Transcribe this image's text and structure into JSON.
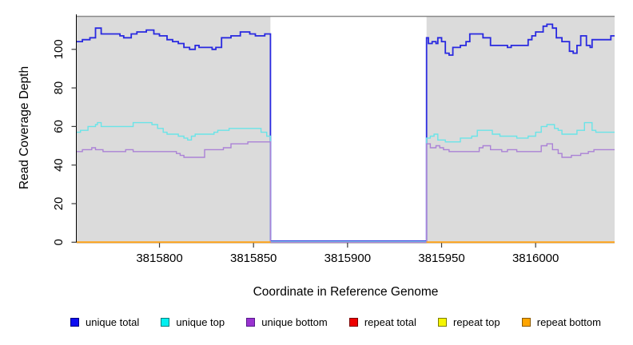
{
  "figure": {
    "x_axis_title": "Coordinate in Reference Genome",
    "y_axis_title": "Read Coverage Depth"
  },
  "colors": {
    "panel_shade": "#dbdbdb",
    "panel_top_border": "#8a8a8a",
    "axis": "#000000",
    "tick": "#3a3a3a",
    "unique_total_line": "#2929e0",
    "unique_top_line": "#6ae4e8",
    "unique_bottom_line": "#ab82d6",
    "repeat_total_line": "#ee0000",
    "repeat_top_line": "#f5f500",
    "repeat_bottom_line": "#ffa319"
  },
  "chart_data": {
    "type": "line",
    "step": true,
    "title": "",
    "xlabel": "Coordinate in Reference Genome",
    "ylabel": "Read Coverage Depth",
    "xlim": [
      3815756,
      3816042
    ],
    "ylim": [
      0,
      118
    ],
    "x_ticks": [
      3815800,
      3815850,
      3815900,
      3815950,
      3816000
    ],
    "y_ticks": [
      0,
      20,
      40,
      60,
      80,
      100
    ],
    "grid": false,
    "legend_position": "bottom",
    "shaded_regions": [
      {
        "x0": 3815756,
        "x1": 3815859
      },
      {
        "x0": 3815942,
        "x1": 3816042
      }
    ],
    "uncovered_gap": {
      "x0": 3815859,
      "x1": 3815942
    },
    "series": [
      {
        "name": "unique total",
        "color": "#2929e0",
        "width": 1.8,
        "segments": [
          [
            [
              3815756,
              104
            ],
            [
              3815759,
              105
            ],
            [
              3815763,
              106
            ],
            [
              3815766,
              111
            ],
            [
              3815769,
              108
            ],
            [
              3815779,
              107
            ],
            [
              3815781,
              106
            ],
            [
              3815785,
              108
            ],
            [
              3815788,
              109
            ],
            [
              3815793,
              110
            ],
            [
              3815797,
              108
            ],
            [
              3815800,
              107
            ],
            [
              3815804,
              105
            ],
            [
              3815807,
              104
            ],
            [
              3815810,
              103
            ],
            [
              3815813,
              101
            ],
            [
              3815816,
              100
            ],
            [
              3815819,
              102
            ],
            [
              3815821,
              101
            ],
            [
              3815828,
              100
            ],
            [
              3815830,
              101
            ],
            [
              3815833,
              106
            ],
            [
              3815838,
              107
            ],
            [
              3815843,
              109
            ],
            [
              3815848,
              108
            ],
            [
              3815851,
              107
            ],
            [
              3815856,
              108
            ],
            [
              3815859,
              0.6
            ],
            [
              3815942,
              106
            ],
            [
              3815943,
              103
            ],
            [
              3815945,
              104
            ],
            [
              3815947,
              103
            ],
            [
              3815948,
              106
            ],
            [
              3815950,
              104
            ],
            [
              3815952,
              98
            ],
            [
              3815954,
              97
            ],
            [
              3815956,
              101
            ],
            [
              3815960,
              102
            ],
            [
              3815963,
              104
            ],
            [
              3815965,
              108
            ],
            [
              3815972,
              106
            ],
            [
              3815976,
              102
            ],
            [
              3815985,
              101
            ],
            [
              3815987,
              102
            ],
            [
              3815996,
              105
            ],
            [
              3815998,
              107
            ],
            [
              3816000,
              109
            ],
            [
              3816004,
              112
            ],
            [
              3816006,
              113
            ],
            [
              3816009,
              111
            ],
            [
              3816011,
              106
            ],
            [
              3816014,
              104
            ],
            [
              3816018,
              99
            ],
            [
              3816020,
              98
            ],
            [
              3816022,
              102
            ],
            [
              3816024,
              107
            ],
            [
              3816027,
              102
            ],
            [
              3816029,
              101
            ],
            [
              3816030,
              105
            ],
            [
              3816033,
              105
            ],
            [
              3816040,
              107
            ]
          ]
        ]
      },
      {
        "name": "unique top",
        "color": "#6ae4e8",
        "width": 1.4,
        "segments": [
          [
            [
              3815756,
              57
            ],
            [
              3815758,
              58
            ],
            [
              3815762,
              60
            ],
            [
              3815766,
              61
            ],
            [
              3815767,
              62
            ],
            [
              3815769,
              60
            ],
            [
              3815784,
              60
            ],
            [
              3815786,
              62
            ],
            [
              3815796,
              61
            ],
            [
              3815799,
              59
            ],
            [
              3815802,
              57
            ],
            [
              3815804,
              56
            ],
            [
              3815810,
              55
            ],
            [
              3815813,
              54
            ],
            [
              3815815,
              53
            ],
            [
              3815817,
              55
            ],
            [
              3815819,
              56
            ],
            [
              3815829,
              57
            ],
            [
              3815831,
              58
            ],
            [
              3815837,
              59
            ],
            [
              3815854,
              57
            ],
            [
              3815857,
              55
            ],
            [
              3815859,
              0.3
            ],
            [
              3815942,
              54
            ],
            [
              3815944,
              55
            ],
            [
              3815946,
              56
            ],
            [
              3815948,
              53
            ],
            [
              3815952,
              52
            ],
            [
              3815960,
              54
            ],
            [
              3815966,
              55
            ],
            [
              3815969,
              58
            ],
            [
              3815977,
              56
            ],
            [
              3815981,
              55
            ],
            [
              3815990,
              54
            ],
            [
              3815996,
              55
            ],
            [
              3816000,
              57
            ],
            [
              3816003,
              60
            ],
            [
              3816006,
              61
            ],
            [
              3816010,
              59
            ],
            [
              3816012,
              58
            ],
            [
              3816014,
              56
            ],
            [
              3816022,
              58
            ],
            [
              3816026,
              62
            ],
            [
              3816030,
              58
            ],
            [
              3816032,
              57
            ]
          ]
        ]
      },
      {
        "name": "unique bottom",
        "color": "#ab82d6",
        "width": 1.4,
        "segments": [
          [
            [
              3815756,
              47
            ],
            [
              3815759,
              48
            ],
            [
              3815764,
              49
            ],
            [
              3815766,
              48
            ],
            [
              3815770,
              47
            ],
            [
              3815782,
              48
            ],
            [
              3815786,
              47
            ],
            [
              3815809,
              46
            ],
            [
              3815811,
              45
            ],
            [
              3815813,
              44
            ],
            [
              3815824,
              48
            ],
            [
              3815834,
              49
            ],
            [
              3815838,
              51
            ],
            [
              3815847,
              52
            ],
            [
              3815859,
              0
            ],
            [
              3815942,
              51
            ],
            [
              3815944,
              49
            ],
            [
              3815947,
              50
            ],
            [
              3815949,
              49
            ],
            [
              3815951,
              48
            ],
            [
              3815954,
              47
            ],
            [
              3815970,
              49
            ],
            [
              3815972,
              50
            ],
            [
              3815976,
              48
            ],
            [
              3815982,
              47
            ],
            [
              3815985,
              48
            ],
            [
              3815990,
              47
            ],
            [
              3816003,
              50
            ],
            [
              3816006,
              51
            ],
            [
              3816009,
              48
            ],
            [
              3816012,
              46
            ],
            [
              3816014,
              44
            ],
            [
              3816019,
              45
            ],
            [
              3816024,
              46
            ],
            [
              3816028,
              47
            ],
            [
              3816031,
              48
            ]
          ]
        ]
      },
      {
        "name": "repeat total",
        "color": "#ee0000",
        "width": 1.4,
        "segments": [
          [
            [
              3815756,
              0
            ],
            [
              3815859,
              0
            ]
          ],
          [
            [
              3815942,
              0
            ],
            [
              3816042,
              0
            ]
          ]
        ]
      },
      {
        "name": "repeat top",
        "color": "#f5f500",
        "width": 1.4,
        "segments": [
          [
            [
              3815756,
              0
            ],
            [
              3815859,
              0
            ]
          ],
          [
            [
              3815942,
              0
            ],
            [
              3816042,
              0
            ]
          ]
        ]
      },
      {
        "name": "repeat bottom",
        "color": "#ffa319",
        "width": 2,
        "segments": [
          [
            [
              3815756,
              0
            ],
            [
              3815859,
              0
            ]
          ],
          [
            [
              3815942,
              0
            ],
            [
              3816042,
              0
            ]
          ]
        ]
      }
    ],
    "legend": [
      {
        "label": "unique total",
        "fill": "#0d0df0",
        "border": "#000080"
      },
      {
        "label": "unique top",
        "fill": "#00f0f0",
        "border": "#007d7d"
      },
      {
        "label": "unique bottom",
        "fill": "#9a32d0",
        "border": "#551a8b"
      },
      {
        "label": "repeat total",
        "fill": "#ee0000",
        "border": "#7a0000"
      },
      {
        "label": "repeat top",
        "fill": "#f5f500",
        "border": "#7d7d00"
      },
      {
        "label": "repeat bottom",
        "fill": "#ffa500",
        "border": "#8b5a00"
      }
    ]
  }
}
